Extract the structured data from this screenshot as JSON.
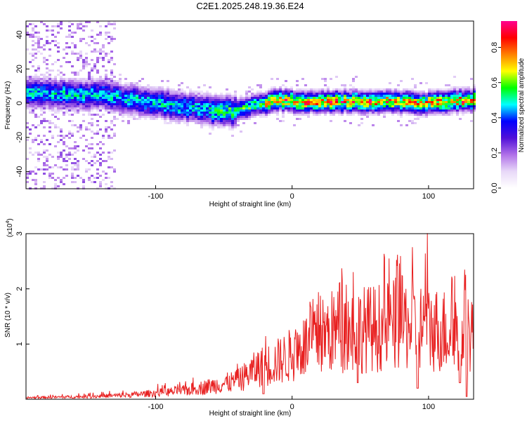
{
  "title": "C2E1.2025.248.19.36.E24",
  "chart_data": [
    {
      "type": "heatmap",
      "name": "spectrogram",
      "xlabel": "Height of straight line (km)",
      "ylabel": "Frequency (Hz)",
      "xlim": [
        -195,
        133
      ],
      "ylim": [
        -50,
        48
      ],
      "xticks": [
        -100,
        0,
        100
      ],
      "yticks": [
        40,
        20,
        0,
        -20,
        -40
      ],
      "colorbar": {
        "label": "Normalized spectral amplitude",
        "range": [
          0.0,
          0.95
        ],
        "ticks": [
          0.0,
          0.2,
          0.4,
          0.6,
          0.8
        ],
        "colors": [
          "#ffffff",
          "#e8d8f8",
          "#b070e8",
          "#5010d8",
          "#0000ff",
          "#00ffff",
          "#00ff00",
          "#ffff00",
          "#ff8000",
          "#ff0000",
          "#ff0090"
        ]
      },
      "ridge_center_hz": [
        {
          "x": -190,
          "f": 6
        },
        {
          "x": -160,
          "f": 5
        },
        {
          "x": -140,
          "f": 5
        },
        {
          "x": -120,
          "f": 2
        },
        {
          "x": -100,
          "f": 0
        },
        {
          "x": -80,
          "f": -2
        },
        {
          "x": -60,
          "f": -4
        },
        {
          "x": -45,
          "f": -5
        },
        {
          "x": -35,
          "f": -3
        },
        {
          "x": -20,
          "f": 0
        },
        {
          "x": -10,
          "f": 2
        },
        {
          "x": 0,
          "f": 1
        },
        {
          "x": 50,
          "f": 1
        },
        {
          "x": 100,
          "f": 0
        },
        {
          "x": 133,
          "f": 2
        }
      ]
    },
    {
      "type": "line",
      "name": "snr",
      "xlabel": "Height of straight line (km)",
      "ylabel": "SNR (10 * v/v)",
      "scale_label": "(x10",
      "scale_exponent": "4",
      "xlim": [
        -195,
        133
      ],
      "ylim": [
        0,
        3.0
      ],
      "xticks": [
        -100,
        0,
        100
      ],
      "yticks": [
        1,
        2,
        3
      ],
      "color": "#e82020",
      "envelope": [
        {
          "x": -195,
          "mean": 0.03,
          "peak": 0.06
        },
        {
          "x": -150,
          "mean": 0.05,
          "peak": 0.12
        },
        {
          "x": -120,
          "mean": 0.08,
          "peak": 0.18
        },
        {
          "x": -100,
          "mean": 0.12,
          "peak": 0.28
        },
        {
          "x": -80,
          "mean": 0.16,
          "peak": 0.32
        },
        {
          "x": -60,
          "mean": 0.25,
          "peak": 0.55
        },
        {
          "x": -40,
          "mean": 0.35,
          "peak": 0.75
        },
        {
          "x": -25,
          "mean": 0.6,
          "peak": 1.3
        },
        {
          "x": -12,
          "mean": 0.7,
          "peak": 1.1
        },
        {
          "x": 0,
          "mean": 0.85,
          "peak": 1.15
        },
        {
          "x": 15,
          "mean": 1.1,
          "peak": 1.9
        },
        {
          "x": 30,
          "mean": 1.3,
          "peak": 2.35
        },
        {
          "x": 60,
          "mean": 1.35,
          "peak": 2.6
        },
        {
          "x": 80,
          "mean": 1.45,
          "peak": 2.7
        },
        {
          "x": 100,
          "mean": 1.35,
          "peak": 3.05
        },
        {
          "x": 115,
          "mean": 1.3,
          "peak": 2.3
        },
        {
          "x": 133,
          "mean": 1.3,
          "peak": 2.6
        }
      ],
      "dips": [
        {
          "x": -21,
          "value": 0.1
        },
        {
          "x": 48,
          "value": 0.3
        },
        {
          "x": 92,
          "value": 0.2
        },
        {
          "x": 123,
          "value": 0.3
        },
        {
          "x": 128,
          "value": 0.05
        }
      ]
    }
  ]
}
